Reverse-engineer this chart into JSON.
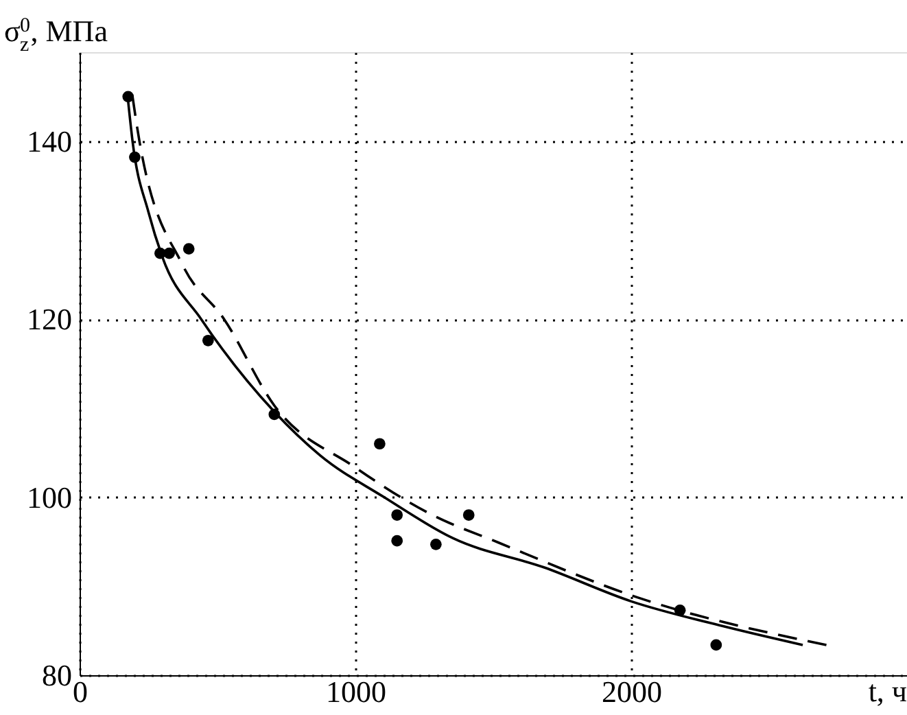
{
  "chart_data": {
    "type": "scatter",
    "xlabel": "t, ч",
    "ylabel": "σ$_{z}$$^{0}$, МПа",
    "xlim": [
      0,
      3000
    ],
    "ylim": [
      80,
      150
    ],
    "xticks": [
      0,
      1000,
      2000
    ],
    "yticks": [
      80,
      100,
      120,
      140
    ],
    "grid": true,
    "series": [
      {
        "marker": "circle",
        "color": "#000000",
        "x": [
          176,
          200,
          292,
          325,
          396,
          466,
          706,
          1088,
          1151,
          1151,
          1292,
          1411,
          2177,
          2308
        ],
        "values": [
          145.0,
          138.2,
          127.4,
          127.4,
          127.9,
          117.6,
          109.3,
          106.0,
          98.0,
          95.1,
          94.7,
          98.0,
          87.3,
          83.4
        ]
      },
      {
        "type": "line",
        "line_style": "solid",
        "color": "#000000",
        "x": [
          176,
          192,
          250,
          300,
          441,
          706,
          872,
          1104,
          1353,
          1685,
          2000,
          2348,
          2622
        ],
        "values": [
          144.5,
          140,
          132,
          127,
          120,
          109.6,
          104.7,
          100,
          95.4,
          92.1,
          88.3,
          85.4,
          83.4
        ]
      },
      {
        "type": "line",
        "line_style": "dashed",
        "color": "#000000",
        "x": [
          192,
          217,
          375,
          524,
          706,
          997,
          1279,
          1519,
          2017,
          2721
        ],
        "values": [
          145,
          140,
          126,
          120,
          110.3,
          103.4,
          98,
          94.9,
          88.8,
          83.3
        ]
      }
    ]
  }
}
